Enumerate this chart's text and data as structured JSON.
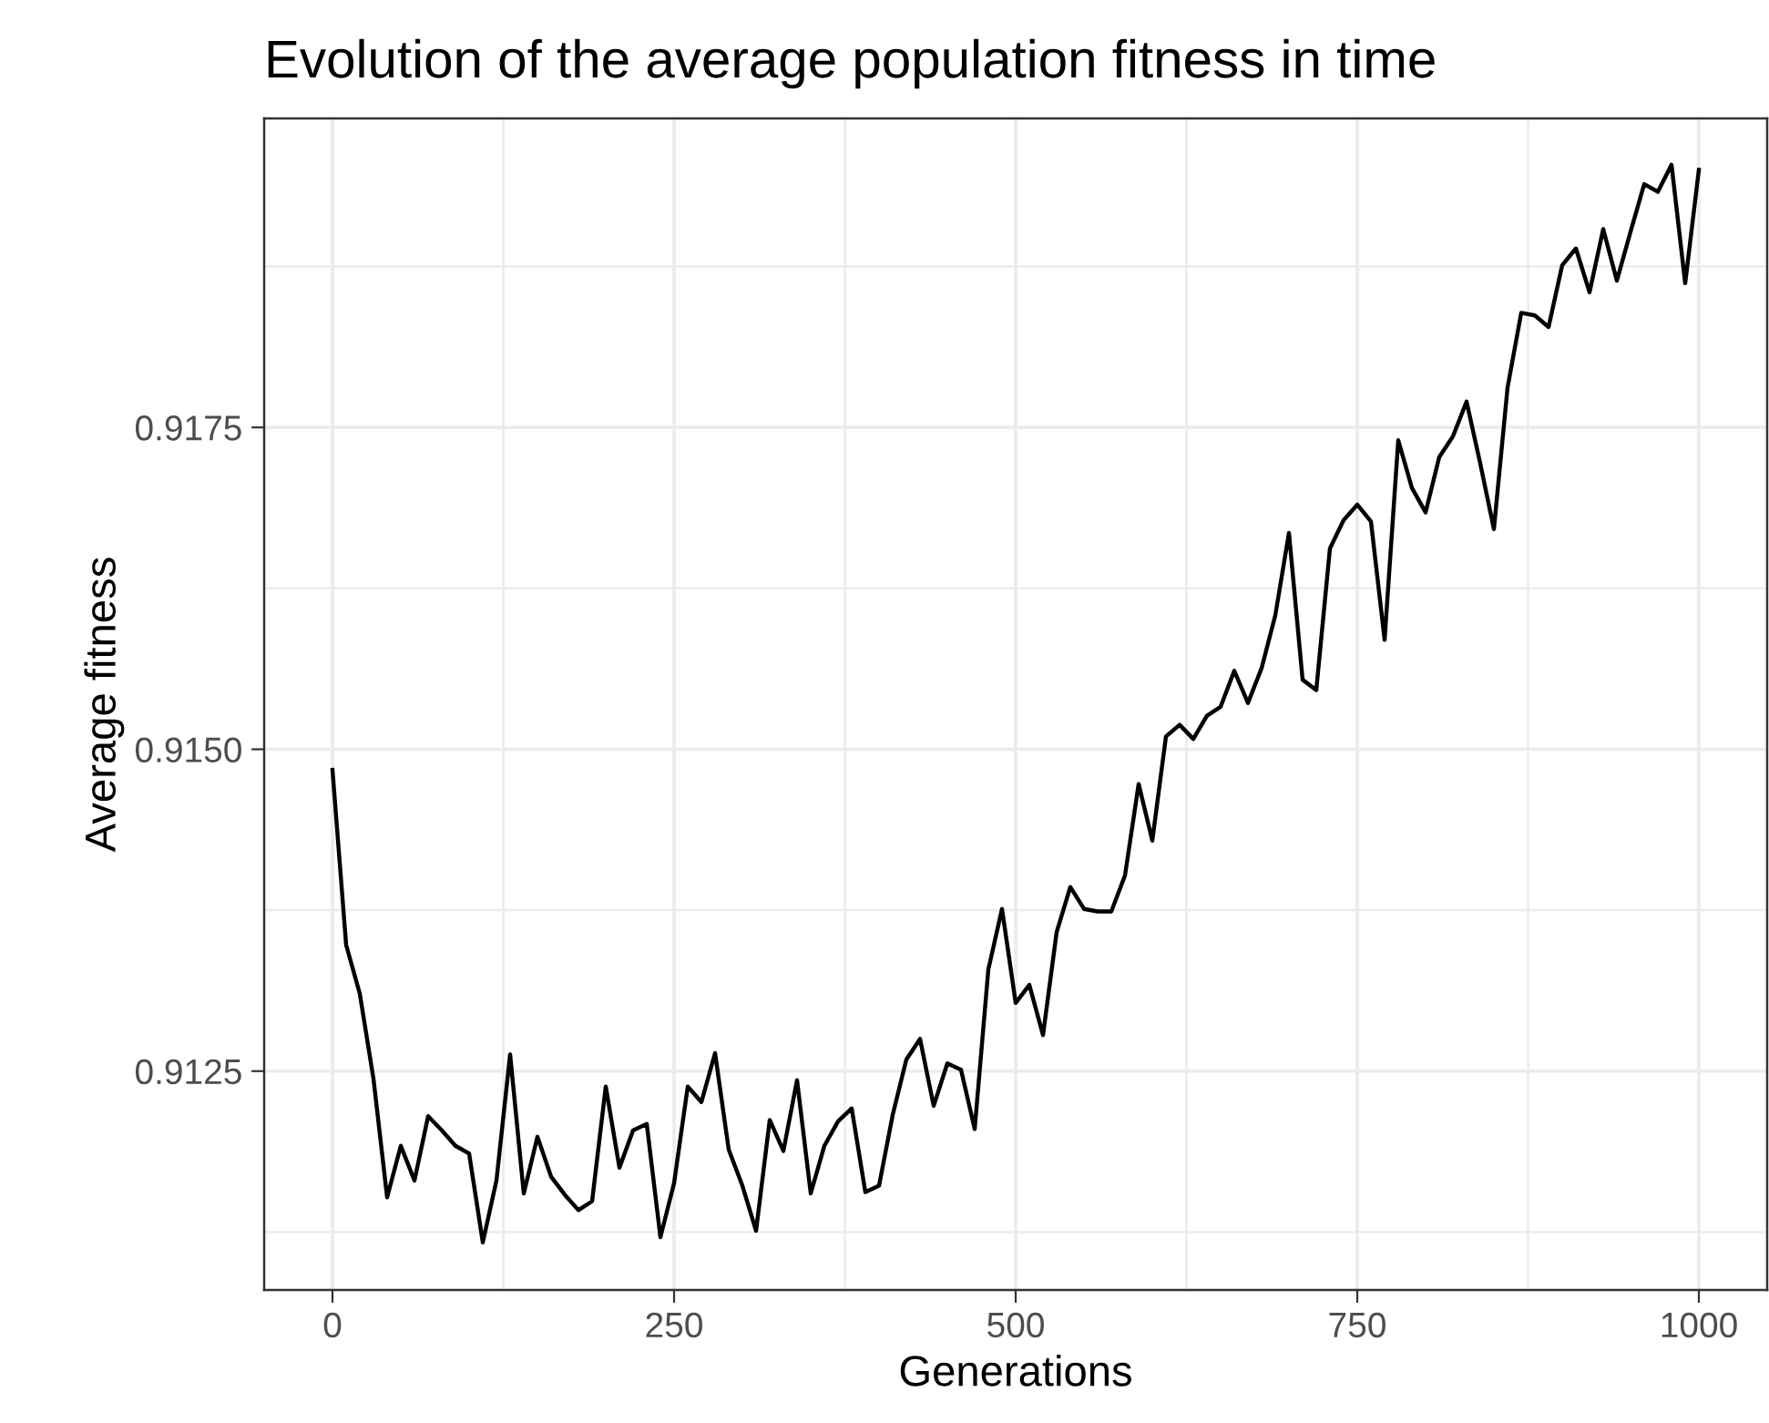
{
  "chart_data": {
    "type": "line",
    "title": "Evolution of the average population fitness in time",
    "xlabel": "Generations",
    "ylabel": "Average fitness",
    "x": [
      0,
      10,
      20,
      30,
      40,
      50,
      60,
      70,
      80,
      90,
      100,
      110,
      120,
      130,
      140,
      150,
      160,
      170,
      180,
      190,
      200,
      210,
      220,
      230,
      240,
      250,
      260,
      270,
      280,
      290,
      300,
      310,
      320,
      330,
      340,
      350,
      360,
      370,
      380,
      390,
      400,
      410,
      420,
      430,
      440,
      450,
      460,
      470,
      480,
      490,
      500,
      510,
      520,
      530,
      540,
      550,
      560,
      570,
      580,
      590,
      600,
      610,
      620,
      630,
      640,
      650,
      660,
      670,
      680,
      690,
      700,
      710,
      720,
      730,
      740,
      750,
      760,
      770,
      780,
      790,
      800,
      810,
      820,
      830,
      840,
      850,
      860,
      870,
      880,
      890,
      900,
      910,
      920,
      930,
      940,
      950,
      960,
      970,
      980,
      990,
      1000
    ],
    "series": [
      {
        "color": "#000000",
        "values": [
          0.91484,
          0.91348,
          0.9131,
          0.91244,
          0.91152,
          0.91192,
          0.91165,
          0.91215,
          0.91204,
          0.91192,
          0.91186,
          0.91117,
          0.91165,
          0.91263,
          0.91155,
          0.91199,
          0.91168,
          0.91154,
          0.91142,
          0.91149,
          0.91238,
          0.91175,
          0.91204,
          0.91209,
          0.91121,
          0.91163,
          0.91238,
          0.91226,
          0.91264,
          0.91189,
          0.91161,
          0.91126,
          0.91212,
          0.91188,
          0.91243,
          0.91155,
          0.91192,
          0.91211,
          0.91221,
          0.91156,
          0.91161,
          0.91216,
          0.91259,
          0.91275,
          0.91223,
          0.91256,
          0.91251,
          0.91205,
          0.91329,
          0.91376,
          0.91303,
          0.91317,
          0.91278,
          0.91358,
          0.91393,
          0.91376,
          0.91374,
          0.91374,
          0.91402,
          0.91473,
          0.91429,
          0.9151,
          0.91519,
          0.91508,
          0.91526,
          0.91533,
          0.91561,
          0.91536,
          0.91563,
          0.91604,
          0.91668,
          0.91554,
          0.91546,
          0.91656,
          0.91678,
          0.9169,
          0.91677,
          0.91585,
          0.9174,
          0.91703,
          0.91684,
          0.91727,
          0.91743,
          0.9177,
          0.91722,
          0.91671,
          0.91781,
          0.91839,
          0.91837,
          0.91828,
          0.91876,
          0.91889,
          0.91855,
          0.91904,
          0.91864,
          0.91902,
          0.91939,
          0.91933,
          0.91954,
          0.91862,
          0.9195
        ]
      }
    ],
    "xlim": [
      -50,
      1050
    ],
    "ylim": [
      0.9108,
      0.9199
    ],
    "xticks": [
      0,
      250,
      500,
      750,
      1000
    ],
    "yticks": [
      {
        "value": 0.9125,
        "label": "0.9125"
      },
      {
        "value": 0.915,
        "label": "0.9150"
      },
      {
        "value": 0.9175,
        "label": "0.9175"
      }
    ],
    "grid": true,
    "marker": "none",
    "line_style": "solid"
  }
}
